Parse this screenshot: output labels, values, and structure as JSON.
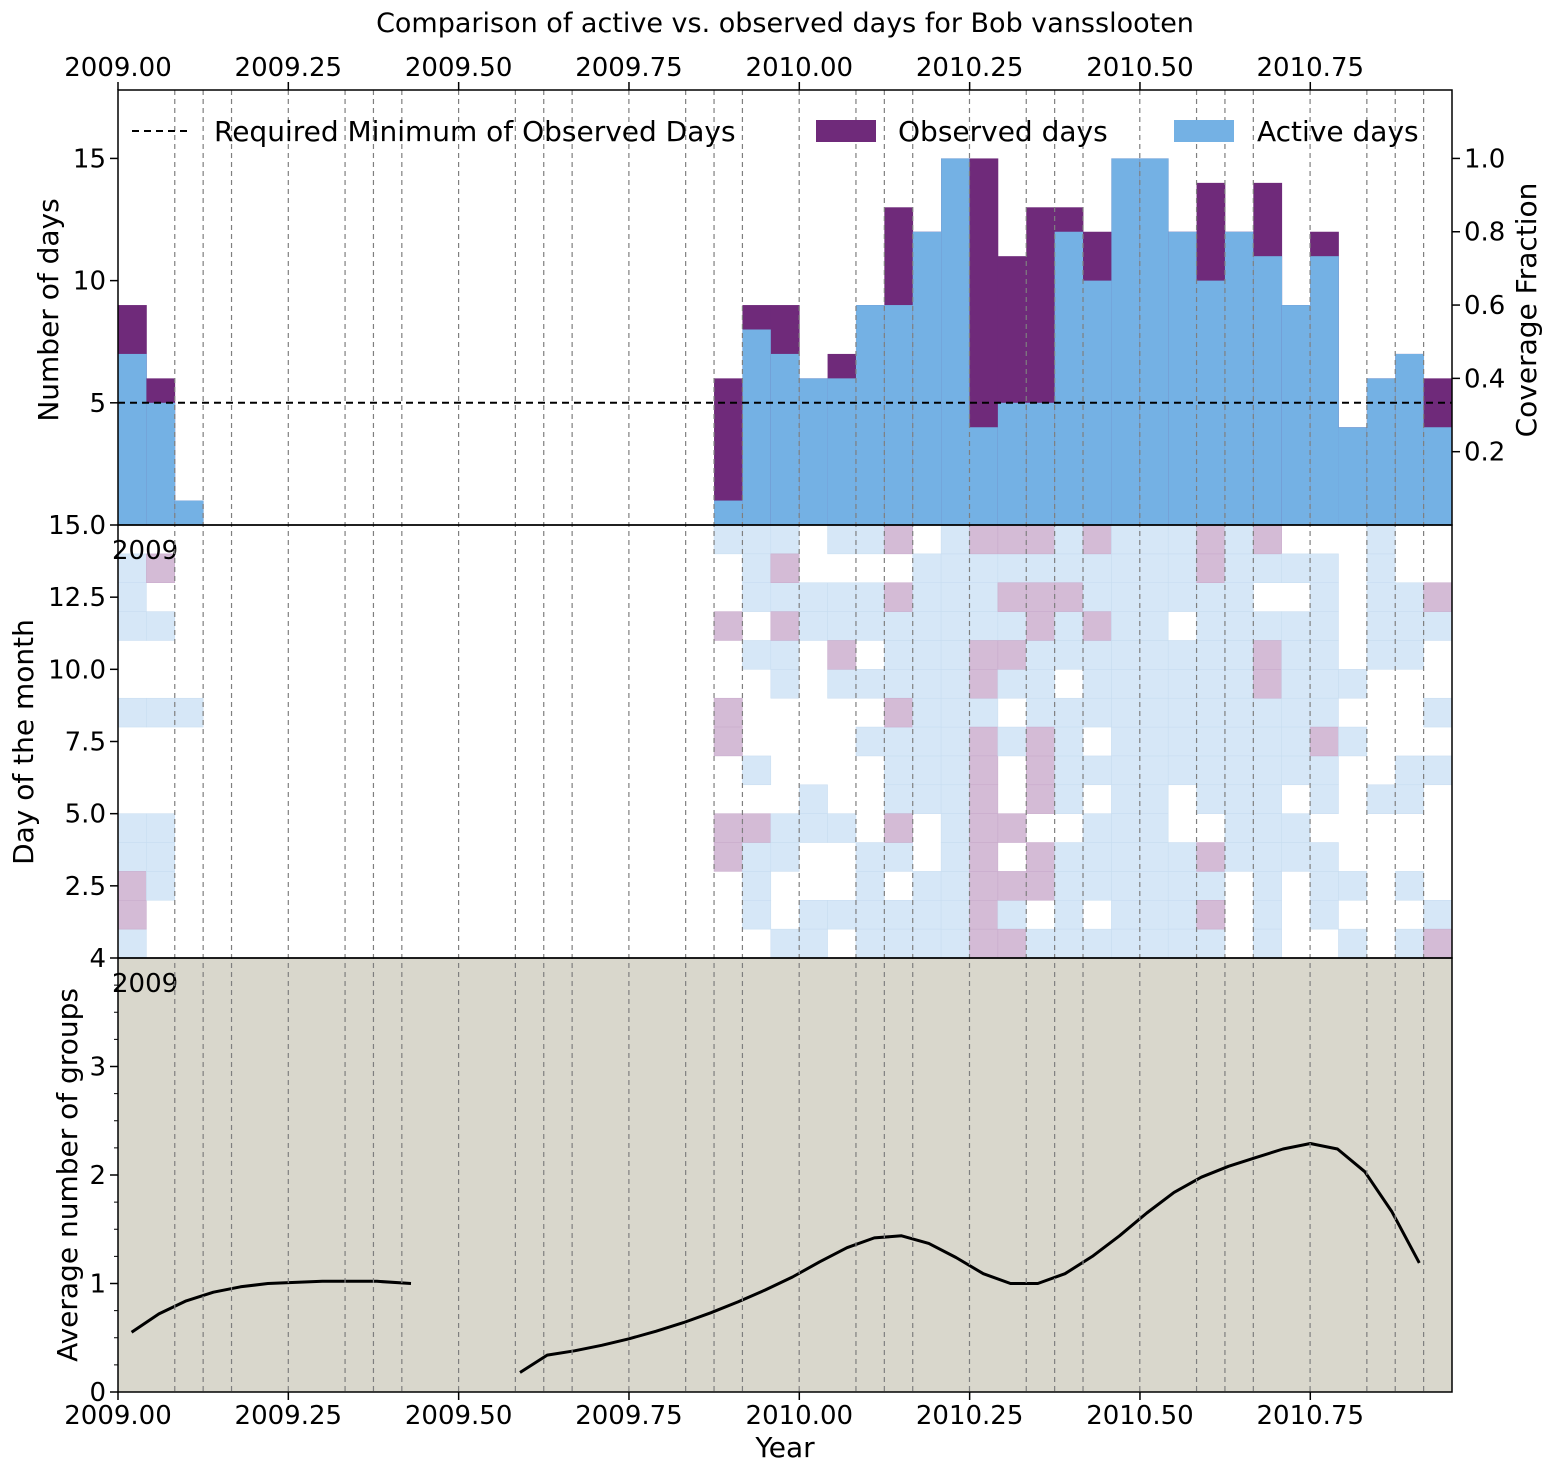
{
  "title": "Comparison of active vs. observed days for Bob vansslooten",
  "colors": {
    "observed": "#6f2a7a",
    "active": "#74b1e4",
    "heat_active": "#d6e7f7",
    "heat_observed": "#d4bbd6",
    "panel3_bg": "#d9d7cc",
    "grid_dash": "#7f7f7f",
    "line": "#000000"
  },
  "top_axis": {
    "tick_labels": [
      "2009.00",
      "2009.25",
      "2009.50",
      "2009.75",
      "2010.00",
      "2010.25",
      "2010.50",
      "2010.75"
    ]
  },
  "chart_data": [
    {
      "type": "bar",
      "panel": "top",
      "ylabel": "Number of days",
      "right_ylabel": "Coverage Fraction",
      "xlim": [
        2009.0,
        2010.958
      ],
      "ylim": [
        0,
        17.8
      ],
      "yticks": [
        5,
        10,
        15
      ],
      "right_ticks": [
        "0.2",
        "0.4",
        "0.6",
        "0.8",
        "1.0"
      ],
      "right_tick_values": [
        3,
        6,
        9,
        12,
        15
      ],
      "bin_start": 2009.0,
      "bin_width": 0.04,
      "legend_position": "top",
      "legend": [
        "Required Minimum of Observed Days",
        "Observed days",
        "Active days"
      ],
      "required_minimum": 5,
      "observed_days": [
        9,
        6,
        1,
        0,
        0,
        0,
        0,
        0,
        0,
        0,
        0,
        0,
        0,
        0,
        0,
        0,
        0,
        0,
        0,
        0,
        0,
        6,
        9,
        9,
        6,
        7,
        9,
        13,
        12,
        15,
        15,
        11,
        13,
        13,
        12,
        15,
        15,
        12,
        14,
        12,
        14,
        9,
        12,
        4,
        6,
        7,
        6
      ],
      "active_days": [
        7,
        5,
        1,
        0,
        0,
        0,
        0,
        0,
        0,
        0,
        0,
        0,
        0,
        0,
        0,
        0,
        0,
        0,
        0,
        0,
        0,
        1,
        8,
        7,
        6,
        6,
        9,
        9,
        12,
        15,
        4,
        5,
        5,
        12,
        10,
        15,
        15,
        12,
        10,
        12,
        11,
        9,
        11,
        4,
        6,
        7,
        4
      ]
    },
    {
      "type": "heatmap",
      "panel": "middle",
      "ylabel": "Day of the month",
      "ytick_labels": [
        "15.0",
        "12.5",
        "10.0",
        "7.5",
        "5.0",
        "2.5",
        "4"
      ],
      "ytick_values": [
        15,
        12.5,
        10,
        7.5,
        5,
        2.5,
        0
      ],
      "ylim": [
        0,
        15
      ],
      "overlap_tick_label": "2009",
      "rows": 15
    },
    {
      "type": "line",
      "panel": "bottom",
      "xlabel": "Year",
      "ylabel": "Average number of groups",
      "ylim": [
        0,
        4
      ],
      "yticks": [
        0,
        1,
        2,
        3
      ],
      "overlap_tick_label": "2009",
      "xtick_labels": [
        "2009.00",
        "2009.25",
        "2009.50",
        "2009.75",
        "2010.00",
        "2010.25",
        "2010.50",
        "2010.75"
      ],
      "segments": [
        [
          [
            2009.02,
            0.55
          ],
          [
            2009.06,
            0.72
          ],
          [
            2009.1,
            0.84
          ],
          [
            2009.14,
            0.92
          ],
          [
            2009.18,
            0.97
          ],
          [
            2009.22,
            1.0
          ],
          [
            2009.26,
            1.01
          ],
          [
            2009.3,
            1.02
          ],
          [
            2009.34,
            1.02
          ],
          [
            2009.38,
            1.02
          ],
          [
            2009.43,
            1.0
          ]
        ],
        [
          [
            2009.59,
            0.18
          ],
          [
            2009.63,
            0.34
          ],
          [
            2009.67,
            0.38
          ],
          [
            2009.71,
            0.43
          ],
          [
            2009.75,
            0.49
          ],
          [
            2009.79,
            0.56
          ],
          [
            2009.83,
            0.64
          ],
          [
            2009.87,
            0.73
          ],
          [
            2009.91,
            0.83
          ],
          [
            2009.95,
            0.94
          ],
          [
            2009.99,
            1.06
          ],
          [
            2010.03,
            1.2
          ],
          [
            2010.07,
            1.33
          ],
          [
            2010.11,
            1.42
          ],
          [
            2010.15,
            1.44
          ],
          [
            2010.19,
            1.37
          ],
          [
            2010.23,
            1.24
          ],
          [
            2010.27,
            1.09
          ],
          [
            2010.31,
            1.0
          ],
          [
            2010.35,
            1.0
          ],
          [
            2010.39,
            1.09
          ],
          [
            2010.43,
            1.25
          ],
          [
            2010.47,
            1.44
          ],
          [
            2010.51,
            1.65
          ],
          [
            2010.55,
            1.84
          ],
          [
            2010.59,
            1.98
          ],
          [
            2010.63,
            2.08
          ],
          [
            2010.67,
            2.16
          ],
          [
            2010.71,
            2.24
          ],
          [
            2010.75,
            2.29
          ],
          [
            2010.79,
            2.24
          ],
          [
            2010.83,
            2.03
          ],
          [
            2010.87,
            1.66
          ],
          [
            2010.91,
            1.19
          ]
        ]
      ]
    }
  ]
}
